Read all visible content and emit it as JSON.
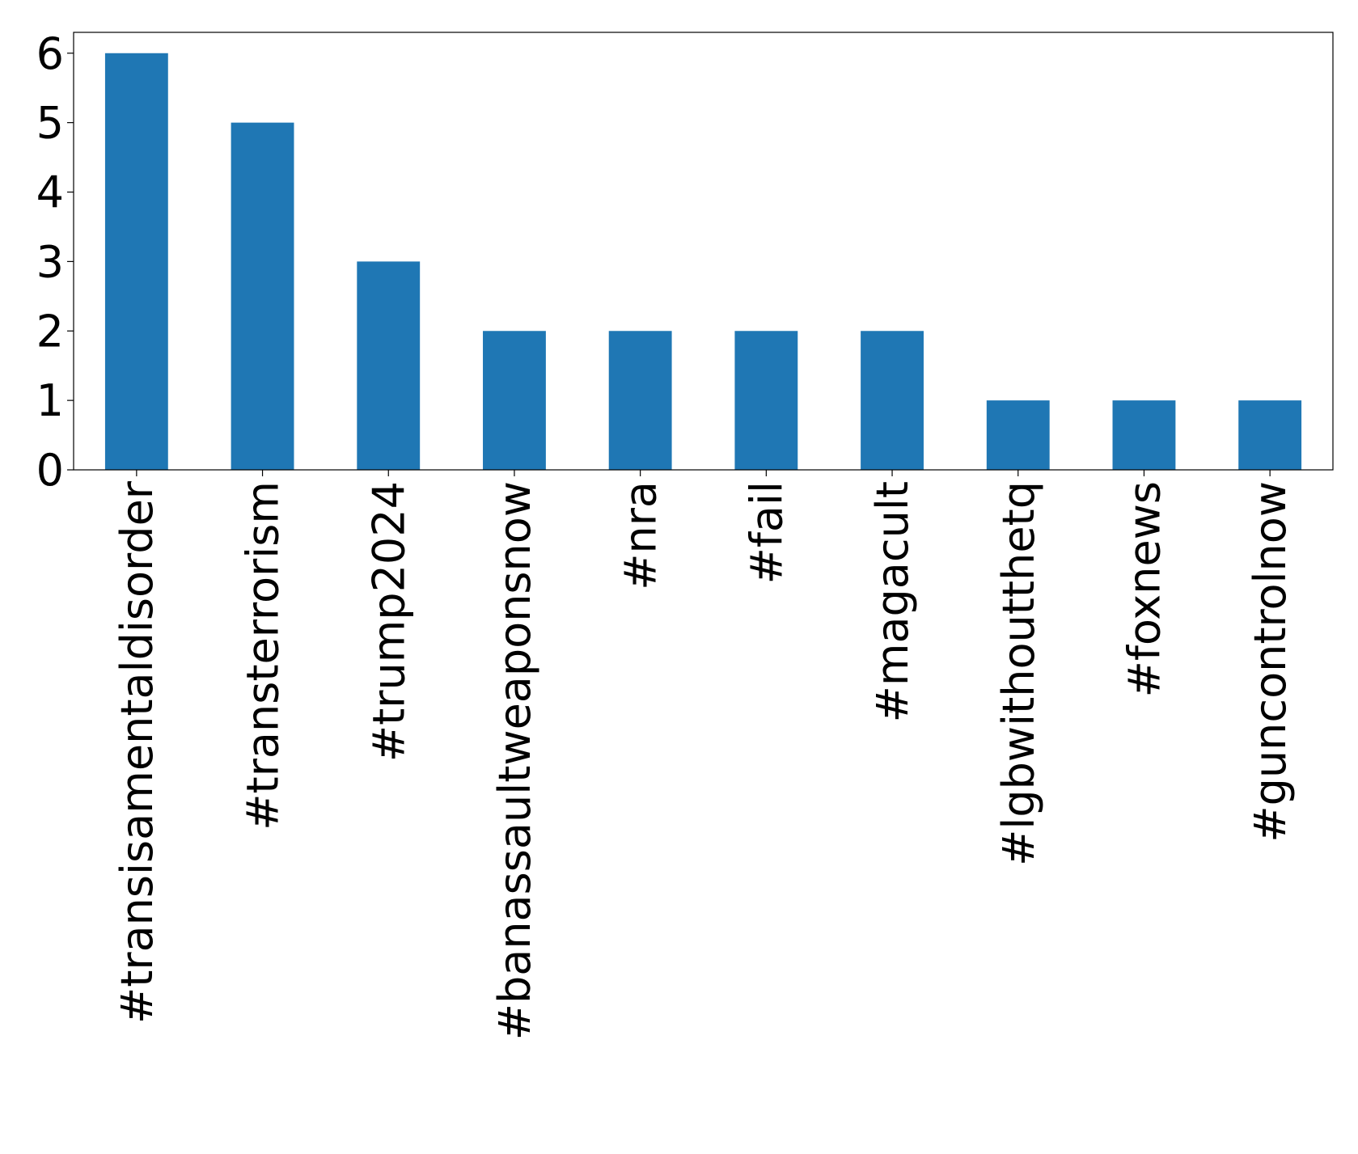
{
  "chart_data": {
    "type": "bar",
    "categories": [
      "#transisamentaldisorder",
      "#transterrorism",
      "#trump2024",
      "#banassaultweaponsnow",
      "#nra",
      "#fail",
      "#magacult",
      "#lgbwithoutthetq",
      "#foxnews",
      "#guncontrolnow"
    ],
    "values": [
      6,
      5,
      3,
      2,
      2,
      2,
      2,
      1,
      1,
      1
    ],
    "color": "#1f77b4",
    "ylim": [
      0,
      6.3
    ],
    "yticks": [
      0,
      1,
      2,
      3,
      4,
      5,
      6
    ],
    "grid": false
  }
}
